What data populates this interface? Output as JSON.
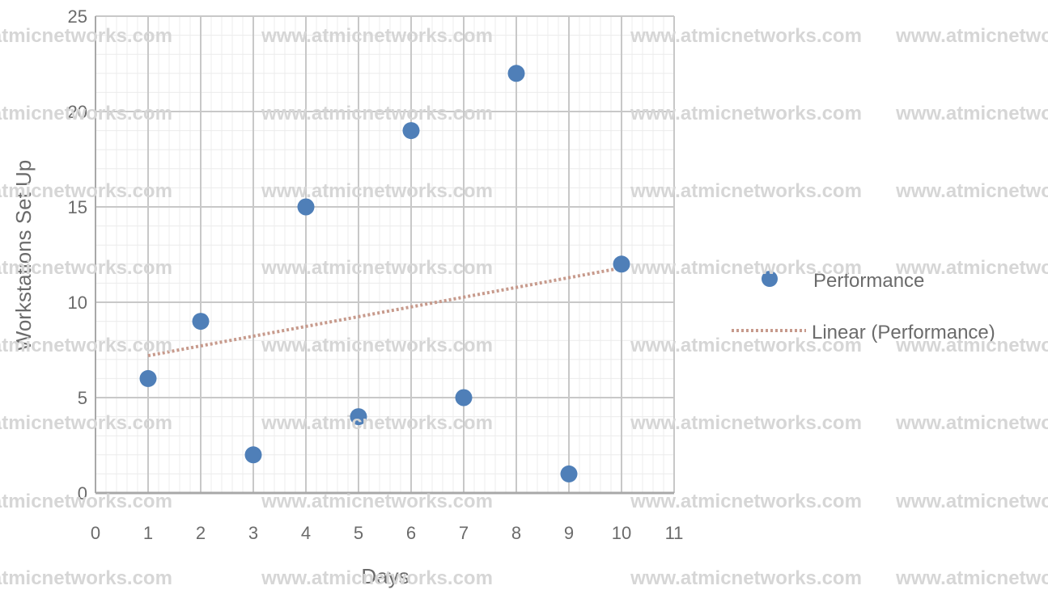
{
  "chart_data": {
    "type": "scatter",
    "title": "",
    "xlabel": "Days",
    "ylabel": "Workstations Set Up",
    "xlim": [
      0,
      11
    ],
    "ylim": [
      0,
      25
    ],
    "xticks": [
      0,
      1,
      2,
      3,
      4,
      5,
      6,
      7,
      8,
      9,
      10,
      11
    ],
    "yticks": [
      0,
      5,
      10,
      15,
      20,
      25
    ],
    "grid": true,
    "legend_position": "right",
    "series": [
      {
        "name": "Performance",
        "color": "#4f7fb8",
        "x": [
          1,
          2,
          3,
          4,
          5,
          6,
          7,
          8,
          9,
          10
        ],
        "y": [
          6,
          9,
          2,
          15,
          4,
          19,
          5,
          22,
          1,
          12
        ]
      }
    ],
    "trendline": {
      "name": "Linear (Performance)",
      "type": "linear",
      "color": "#c79a8c",
      "x": [
        1,
        10
      ],
      "y": [
        7.2,
        11.8
      ]
    }
  },
  "watermark": {
    "text": "www.atmicnetworks.com"
  }
}
